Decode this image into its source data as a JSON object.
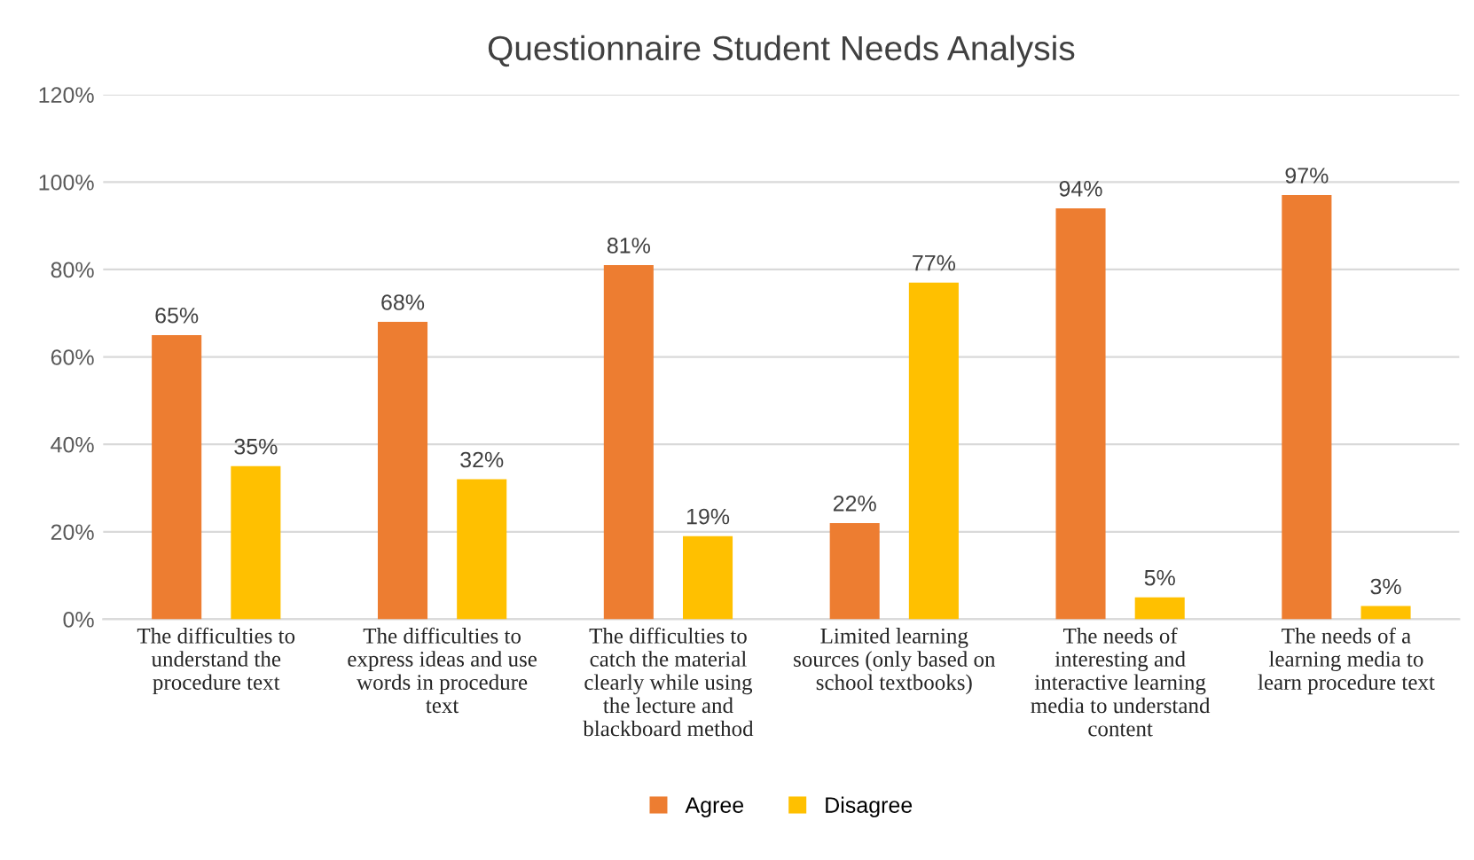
{
  "chart_data": {
    "type": "bar",
    "title": "Questionnaire Student Needs Analysis",
    "categories": [
      "The difficulties to understand the procedure text",
      "The difficulties to express ideas and use words in procedure text",
      "The difficulties to catch the material clearly while using the lecture and blackboard method",
      "Limited learning sources (only based on school textbooks)",
      "The needs of interesting and interactive learning media to understand content",
      "The needs of a learning media to learn procedure text"
    ],
    "series": [
      {
        "name": "Agree",
        "color": "#ed7d31",
        "values": [
          65,
          68,
          81,
          22,
          94,
          97
        ]
      },
      {
        "name": "Disagree",
        "color": "#ffc000",
        "values": [
          35,
          32,
          19,
          77,
          5,
          3
        ]
      }
    ],
    "value_labels": [
      [
        "65%",
        "68%",
        "81%",
        "22%",
        "94%",
        "97%"
      ],
      [
        "35%",
        "32%",
        "19%",
        "77%",
        "5%",
        "3%"
      ]
    ],
    "ylim": [
      0,
      120
    ],
    "yticks": [
      {
        "value": 0,
        "label": "0%"
      },
      {
        "value": 20,
        "label": "20%"
      },
      {
        "value": 40,
        "label": "40%"
      },
      {
        "value": 60,
        "label": "60%"
      },
      {
        "value": 80,
        "label": "80%"
      },
      {
        "value": 100,
        "label": "100%"
      },
      {
        "value": 120,
        "label": "120%"
      }
    ],
    "grid": "y",
    "legend": "bottom"
  }
}
